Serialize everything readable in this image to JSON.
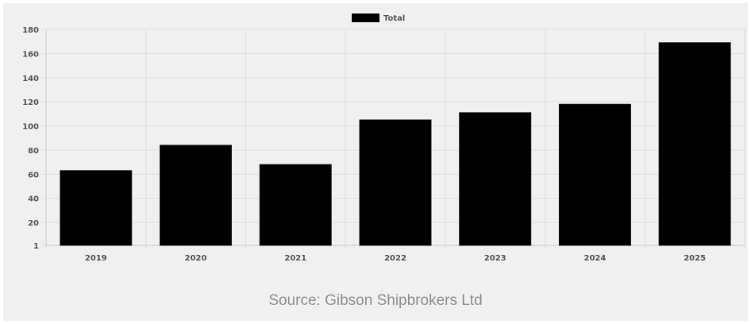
{
  "chart_data": {
    "type": "bar",
    "categories": [
      "2019",
      "2020",
      "2021",
      "2022",
      "2023",
      "2024",
      "2025"
    ],
    "series": [
      {
        "name": "Total",
        "values": [
          63,
          84,
          68,
          105,
          111,
          118,
          169
        ],
        "color": "#000000"
      }
    ],
    "y_ticks": [
      "1",
      "20",
      "40",
      "60",
      "80",
      "100",
      "120",
      "140",
      "160",
      "180"
    ],
    "ylim": [
      1,
      180
    ],
    "grid": true,
    "legend_position": "top-center"
  },
  "source": "Source: Gibson Shipbrokers Ltd"
}
